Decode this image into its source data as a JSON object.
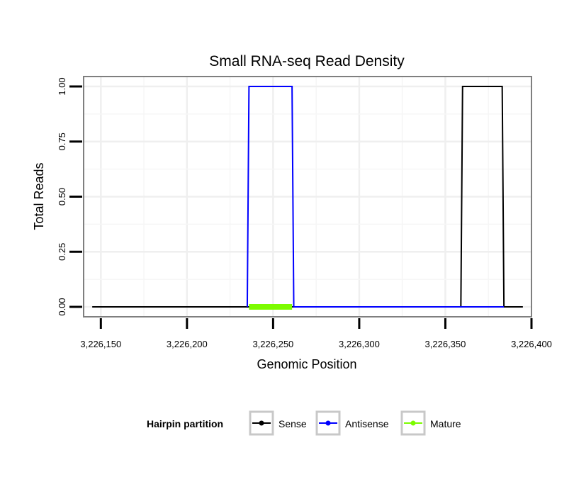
{
  "chart_data": {
    "type": "line",
    "title": "Small RNA-seq Read Density",
    "xlabel": "Genomic Position",
    "ylabel": "Total Reads",
    "xlim": [
      3226140,
      3226400
    ],
    "ylim": [
      -0.045,
      1.045
    ],
    "x_ticks": [
      3226150,
      3226200,
      3226250,
      3226300,
      3226350,
      3226400
    ],
    "x_tick_labels": [
      "3,226,150",
      "3,226,200",
      "3,226,250",
      "3,226,300",
      "3,226,350",
      "3,226,400"
    ],
    "y_ticks": [
      0,
      0.25,
      0.5,
      0.75,
      1.0
    ],
    "y_tick_labels": [
      "0.00",
      "0.25",
      "0.50",
      "0.75",
      "1.00"
    ],
    "grid": true,
    "legend": {
      "title": "Hairpin partition",
      "position": "bottom",
      "entries": [
        "Sense",
        "Antisense",
        "Mature"
      ]
    },
    "series": [
      {
        "name": "Sense",
        "color": "#000000",
        "x": [
          3226145,
          3226359,
          3226360,
          3226383,
          3226384,
          3226395
        ],
        "y": [
          0,
          0,
          1,
          1,
          0,
          0
        ]
      },
      {
        "name": "Antisense",
        "color": "#0000ff",
        "x": [
          3226235,
          3226236,
          3226261,
          3226262,
          3226360,
          3226384
        ],
        "y": [
          0,
          1,
          1,
          0,
          0,
          0
        ]
      },
      {
        "name": "Mature",
        "color": "#7cfc00",
        "x": [
          3226236,
          3226261
        ],
        "y": [
          0,
          0
        ]
      }
    ]
  }
}
